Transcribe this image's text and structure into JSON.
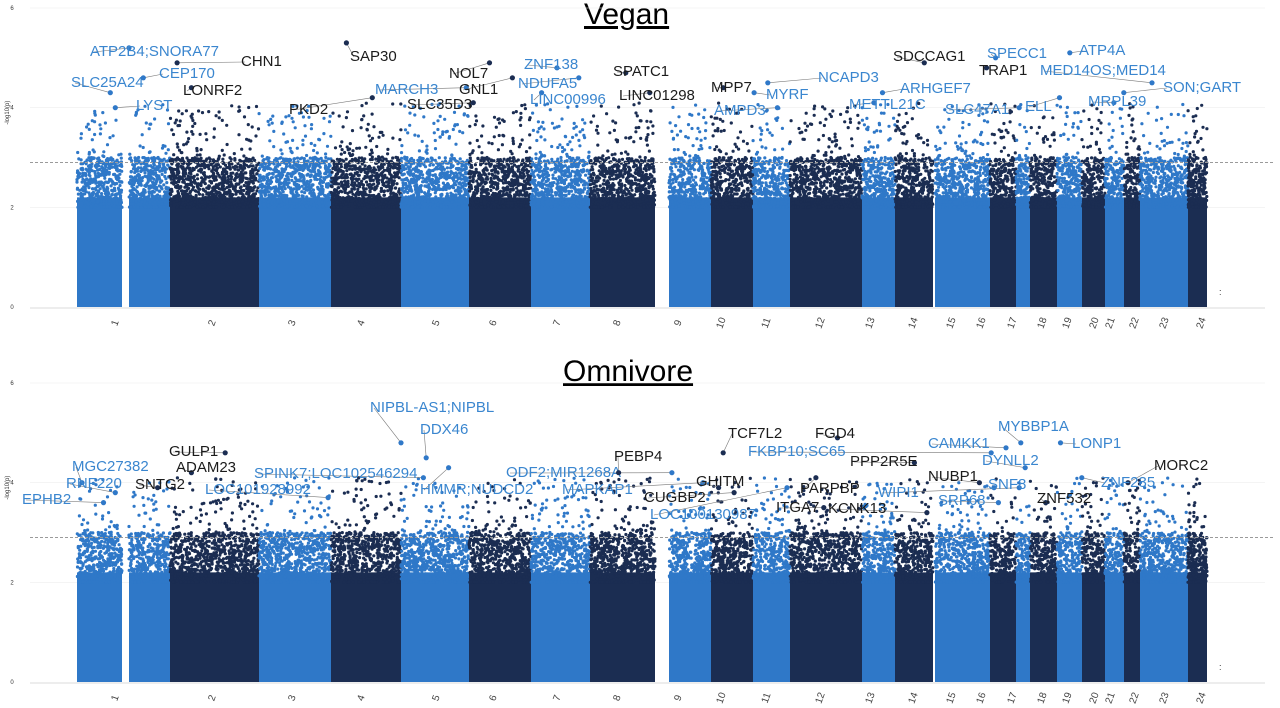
{
  "colors": {
    "light": "#2f78c8",
    "dark": "#1b2d52",
    "label_light": "#3a86cf",
    "label_dark": "#1b1b1b",
    "threshold": "#9a9a9a"
  },
  "chart_data": [
    {
      "type": "scatter",
      "title": "Vegan",
      "ylabel": "-log10(p)",
      "ylim": [
        0,
        6
      ],
      "yticks": [
        "0",
        "2",
        "4",
        "6"
      ],
      "threshold": 2.9,
      "categories": [
        "1",
        "2",
        "3",
        "4",
        "5",
        "6",
        "7",
        "8",
        "9",
        "10",
        "11",
        "12",
        "13",
        "14",
        "15",
        "16",
        "17",
        "18",
        "19",
        "20",
        "21",
        "22",
        "23",
        "24"
      ],
      "extra_tick": ":",
      "labels": [
        {
          "text": "ATP2B4;SNORA77",
          "chrom": "2",
          "value": 5.2,
          "color": "light"
        },
        {
          "text": "CHN1",
          "chrom": "2",
          "value": 4.9,
          "color": "dark"
        },
        {
          "text": "SLC25A24",
          "chrom": "1",
          "value": 4.3,
          "color": "light"
        },
        {
          "text": "CEP170",
          "chrom": "2",
          "value": 4.6,
          "color": "light"
        },
        {
          "text": "LONRF2",
          "chrom": "2",
          "value": 4.4,
          "color": "dark"
        },
        {
          "text": "LYST",
          "chrom": "1",
          "value": 4.0,
          "color": "light"
        },
        {
          "text": "SAP30",
          "chrom": "4",
          "value": 5.3,
          "color": "dark"
        },
        {
          "text": "PKD2",
          "chrom": "4",
          "value": 4.2,
          "color": "dark"
        },
        {
          "text": "MARCH3",
          "chrom": "5",
          "value": 4.4,
          "color": "light"
        },
        {
          "text": "NOL7",
          "chrom": "6",
          "value": 4.9,
          "color": "dark"
        },
        {
          "text": "GNL1",
          "chrom": "6",
          "value": 4.6,
          "color": "dark"
        },
        {
          "text": "SLC35D3",
          "chrom": "6",
          "value": 4.1,
          "color": "dark"
        },
        {
          "text": "ZNF138",
          "chrom": "7",
          "value": 4.8,
          "color": "light"
        },
        {
          "text": "NDUFA5",
          "chrom": "7",
          "value": 4.6,
          "color": "light"
        },
        {
          "text": "LINC00996",
          "chrom": "7",
          "value": 4.3,
          "color": "light"
        },
        {
          "text": "SPATC1",
          "chrom": "8",
          "value": 4.7,
          "color": "dark"
        },
        {
          "text": "LINC01298",
          "chrom": "8",
          "value": 4.3,
          "color": "dark"
        },
        {
          "text": "MPP7",
          "chrom": "10",
          "value": 4.4,
          "color": "dark"
        },
        {
          "text": "AMPD3",
          "chrom": "11",
          "value": 4.0,
          "color": "light"
        },
        {
          "text": "MYRF",
          "chrom": "11",
          "value": 4.3,
          "color": "light"
        },
        {
          "text": "NCAPD3",
          "chrom": "11",
          "value": 4.5,
          "color": "light"
        },
        {
          "text": "SDCCAG1",
          "chrom": "14",
          "value": 4.9,
          "color": "dark"
        },
        {
          "text": "SPECC1",
          "chrom": "17",
          "value": 5.0,
          "color": "light"
        },
        {
          "text": "ATP4A",
          "chrom": "19",
          "value": 5.1,
          "color": "light"
        },
        {
          "text": "TRAP1",
          "chrom": "16",
          "value": 4.8,
          "color": "dark"
        },
        {
          "text": "MED14OS;MED14",
          "chrom": "23",
          "value": 4.5,
          "color": "light"
        },
        {
          "text": "ARHGEF7",
          "chrom": "13",
          "value": 4.3,
          "color": "light"
        },
        {
          "text": "SON;GART",
          "chrom": "21",
          "value": 4.3,
          "color": "light"
        },
        {
          "text": "METTL21C",
          "chrom": "13",
          "value": 4.1,
          "color": "light"
        },
        {
          "text": "SLC47A1",
          "chrom": "17",
          "value": 4.0,
          "color": "light"
        },
        {
          "text": "ELL",
          "chrom": "19",
          "value": 4.2,
          "color": "light"
        },
        {
          "text": "MRPL39",
          "chrom": "21",
          "value": 4.1,
          "color": "light"
        }
      ]
    },
    {
      "type": "scatter",
      "title": "Omnivore",
      "ylabel": "-log10(p)",
      "ylim": [
        0,
        6
      ],
      "yticks": [
        "0",
        "2",
        "4",
        "6"
      ],
      "threshold": 2.9,
      "categories": [
        "1",
        "2",
        "3",
        "4",
        "5",
        "6",
        "7",
        "8",
        "9",
        "10",
        "11",
        "12",
        "13",
        "14",
        "15",
        "16",
        "17",
        "18",
        "19",
        "20",
        "21",
        "22",
        "23",
        "24"
      ],
      "extra_tick": ":",
      "labels": [
        {
          "text": "NIPBL-AS1;NIPBL",
          "chrom": "5",
          "value": 4.8,
          "color": "light"
        },
        {
          "text": "DDX46",
          "chrom": "5",
          "value": 4.5,
          "color": "light"
        },
        {
          "text": "GULP1",
          "chrom": "2",
          "value": 4.6,
          "color": "dark"
        },
        {
          "text": "MGC27382",
          "chrom": "1",
          "value": 4.0,
          "color": "light"
        },
        {
          "text": "ADAM23",
          "chrom": "2",
          "value": 4.2,
          "color": "dark"
        },
        {
          "text": "RNF220",
          "chrom": "1",
          "value": 3.8,
          "color": "light"
        },
        {
          "text": "SNTG2",
          "chrom": "2",
          "value": 3.9,
          "color": "dark"
        },
        {
          "text": "EPHB2",
          "chrom": "1",
          "value": 3.6,
          "color": "light"
        },
        {
          "text": "LOC101928992",
          "chrom": "3",
          "value": 3.7,
          "color": "light"
        },
        {
          "text": "SPINK7;LOC102546294",
          "chrom": "5",
          "value": 4.1,
          "color": "light"
        },
        {
          "text": "HMMR;NUDCD2",
          "chrom": "5",
          "value": 4.3,
          "color": "light"
        },
        {
          "text": "ODF2;MIR1268A",
          "chrom": "9",
          "value": 4.2,
          "color": "light"
        },
        {
          "text": "PEBP4",
          "chrom": "8",
          "value": 4.2,
          "color": "dark"
        },
        {
          "text": "MAPKAP1",
          "chrom": "9",
          "value": 4.0,
          "color": "light"
        },
        {
          "text": "GHITM",
          "chrom": "10",
          "value": 3.9,
          "color": "dark"
        },
        {
          "text": "CUGBP2",
          "chrom": "10",
          "value": 3.8,
          "color": "dark"
        },
        {
          "text": "LOC100130987",
          "chrom": "11",
          "value": 3.9,
          "color": "light"
        },
        {
          "text": "TCF7L2",
          "chrom": "10",
          "value": 4.6,
          "color": "dark"
        },
        {
          "text": "FGD4",
          "chrom": "12",
          "value": 4.9,
          "color": "dark"
        },
        {
          "text": "FKBP10;SC65",
          "chrom": "17",
          "value": 4.6,
          "color": "light"
        },
        {
          "text": "CAMKK1",
          "chrom": "17",
          "value": 4.7,
          "color": "light"
        },
        {
          "text": "MYBBP1A",
          "chrom": "17",
          "value": 4.8,
          "color": "light"
        },
        {
          "text": "LONP1",
          "chrom": "19",
          "value": 4.8,
          "color": "light"
        },
        {
          "text": "PPP2R5E",
          "chrom": "14",
          "value": 4.4,
          "color": "dark"
        },
        {
          "text": "DYNLL2",
          "chrom": "17",
          "value": 4.3,
          "color": "light"
        },
        {
          "text": "MORC2",
          "chrom": "22",
          "value": 4.0,
          "color": "dark"
        },
        {
          "text": "NUBP1",
          "chrom": "16",
          "value": 4.0,
          "color": "dark"
        },
        {
          "text": "ZNF235",
          "chrom": "19",
          "value": 4.1,
          "color": "light"
        },
        {
          "text": "PARPBP",
          "chrom": "12",
          "value": 4.1,
          "color": "dark"
        },
        {
          "text": "WIPI1",
          "chrom": "17",
          "value": 3.9,
          "color": "light"
        },
        {
          "text": "SNF8",
          "chrom": "17",
          "value": 3.9,
          "color": "light"
        },
        {
          "text": "ITGA7",
          "chrom": "12",
          "value": 3.5,
          "color": "dark"
        },
        {
          "text": "KCNK13",
          "chrom": "14",
          "value": 3.4,
          "color": "dark"
        },
        {
          "text": "SRP68",
          "chrom": "17",
          "value": 3.6,
          "color": "light"
        },
        {
          "text": "ZNF532",
          "chrom": "18",
          "value": 3.6,
          "color": "dark"
        }
      ]
    }
  ]
}
